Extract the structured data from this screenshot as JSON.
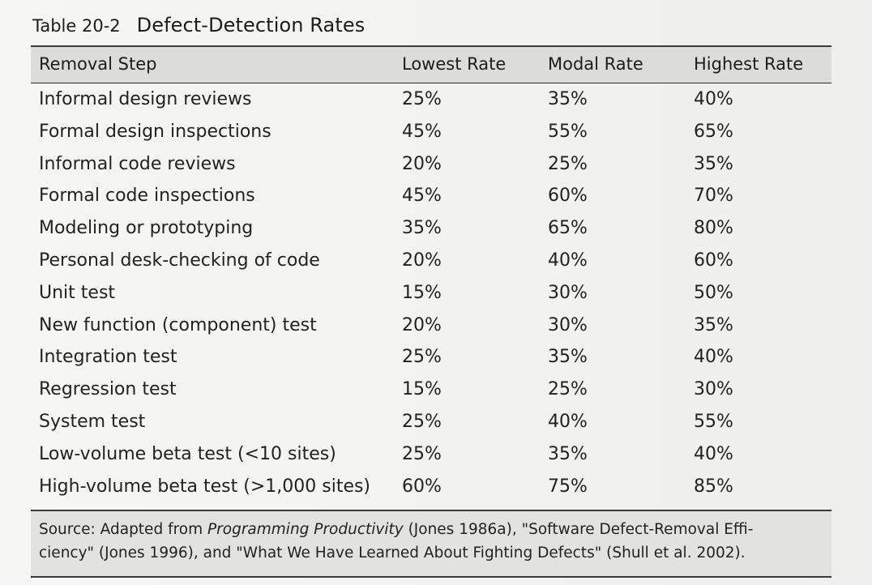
{
  "title": {
    "number": "Table 20-2",
    "name": "Defect-Detection Rates"
  },
  "columns": [
    "Removal Step",
    "Lowest Rate",
    "Modal Rate",
    "Highest Rate"
  ],
  "rows": [
    {
      "step": "Informal design reviews",
      "lowest": "25%",
      "modal": "35%",
      "highest": "40%"
    },
    {
      "step": "Formal design inspections",
      "lowest": "45%",
      "modal": "55%",
      "highest": "65%"
    },
    {
      "step": "Informal code reviews",
      "lowest": "20%",
      "modal": "25%",
      "highest": "35%"
    },
    {
      "step": "Formal code inspections",
      "lowest": "45%",
      "modal": "60%",
      "highest": "70%"
    },
    {
      "step": "Modeling or prototyping",
      "lowest": "35%",
      "modal": "65%",
      "highest": "80%"
    },
    {
      "step": "Personal desk-checking of code",
      "lowest": "20%",
      "modal": "40%",
      "highest": "60%"
    },
    {
      "step": "Unit test",
      "lowest": "15%",
      "modal": "30%",
      "highest": "50%"
    },
    {
      "step": "New function (component) test",
      "lowest": "20%",
      "modal": "30%",
      "highest": "35%"
    },
    {
      "step": "Integration test",
      "lowest": "25%",
      "modal": "35%",
      "highest": "40%"
    },
    {
      "step": "Regression test",
      "lowest": "15%",
      "modal": "25%",
      "highest": "30%"
    },
    {
      "step": "System test",
      "lowest": "25%",
      "modal": "40%",
      "highest": "55%"
    },
    {
      "step": "Low-volume beta test (<10 sites)",
      "lowest": "25%",
      "modal": "35%",
      "highest": "40%"
    },
    {
      "step": "High-volume beta test (>1,000 sites)",
      "lowest": "60%",
      "modal": "75%",
      "highest": "85%"
    }
  ],
  "source": {
    "prefix": "Source: Adapted from ",
    "italic": "Programming Productivity",
    "line1_rest": " (Jones 1986a), \"Software Defect-Removal Effi-",
    "line2": "ciency\" (Jones 1996), and \"What We Have Learned About Fighting Defects\" (Shull et al. 2002)."
  }
}
